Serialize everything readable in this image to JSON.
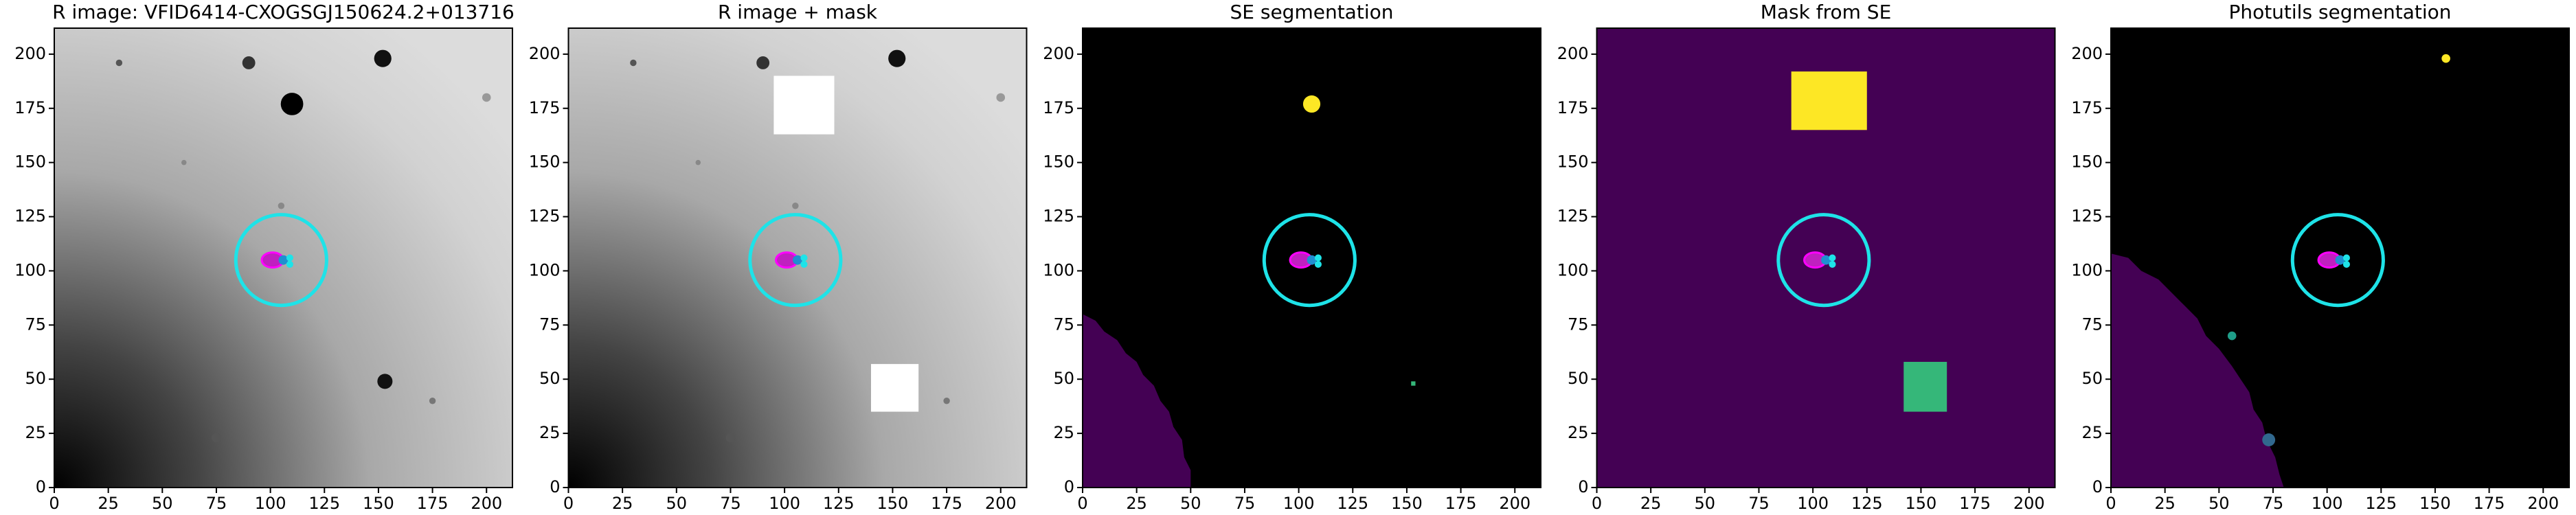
{
  "chart_data": [
    {
      "type": "image",
      "title": "R image: VFID6414-CXOGSGJ150624.2+013716",
      "xlim": [
        0,
        212
      ],
      "ylim": [
        0,
        212
      ],
      "xticks": [
        0,
        25,
        50,
        75,
        100,
        125,
        150,
        175,
        200
      ],
      "yticks": [
        0,
        25,
        50,
        75,
        100,
        125,
        150,
        175,
        200
      ]
    },
    {
      "type": "image",
      "title": "R image + mask",
      "xlim": [
        0,
        212
      ],
      "ylim": [
        0,
        212
      ],
      "xticks": [
        0,
        25,
        50,
        75,
        100,
        125,
        150,
        175,
        200
      ],
      "yticks": [
        0,
        25,
        50,
        75,
        100,
        125,
        150,
        175,
        200
      ]
    },
    {
      "type": "image",
      "title": "SE segmentation",
      "xlim": [
        0,
        212
      ],
      "ylim": [
        0,
        212
      ],
      "xticks": [
        0,
        25,
        50,
        75,
        100,
        125,
        150,
        175,
        200
      ],
      "yticks": [
        0,
        25,
        50,
        75,
        100,
        125,
        150,
        175,
        200
      ]
    },
    {
      "type": "image",
      "title": "Mask from SE",
      "xlim": [
        0,
        212
      ],
      "ylim": [
        0,
        212
      ],
      "xticks": [
        0,
        25,
        50,
        75,
        100,
        125,
        150,
        175,
        200
      ],
      "yticks": [
        0,
        25,
        50,
        75,
        100,
        125,
        150,
        175,
        200
      ]
    },
    {
      "type": "image",
      "title": "Photutils segmentation",
      "xlim": [
        0,
        212
      ],
      "ylim": [
        0,
        212
      ],
      "xticks": [
        0,
        25,
        50,
        75,
        100,
        125,
        150,
        175,
        200
      ],
      "yticks": [
        0,
        25,
        50,
        75,
        100,
        125,
        150,
        175,
        200
      ]
    }
  ]
}
